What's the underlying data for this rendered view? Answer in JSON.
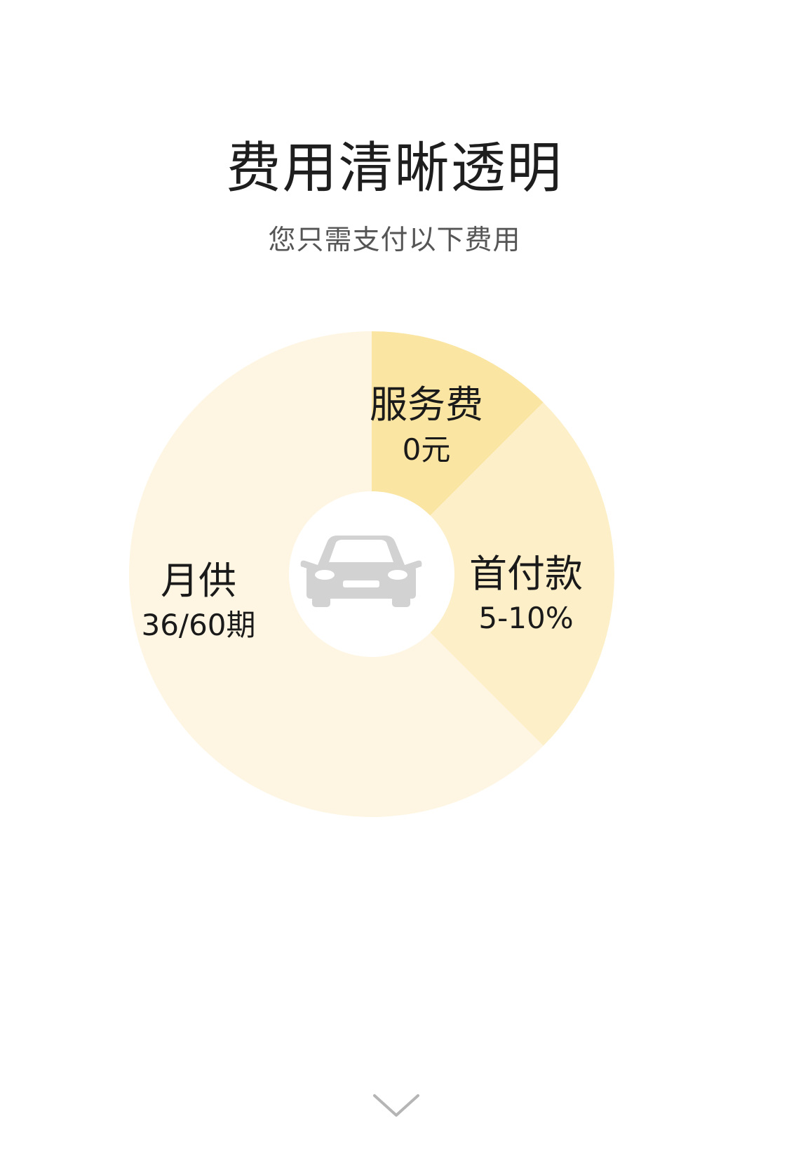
{
  "header": {
    "title": "费用清晰透明",
    "subtitle": "您只需支付以下费用"
  },
  "colors": {
    "service_fee": "#FAE5A2",
    "down_payment": "#FDEFC8",
    "monthly": "#FEF6E3",
    "car_icon": "#D2D2D2",
    "hole": "#FFFFFF"
  },
  "center": {
    "icon": "car-icon"
  },
  "scroll": {
    "icon": "chevron-down-icon"
  },
  "chart_data": {
    "type": "pie",
    "slices": [
      {
        "name": "服务费",
        "value_label": "0元",
        "color": "#FAE5A2",
        "share": 0.125
      },
      {
        "name": "首付款",
        "value_label": "5-10%",
        "color": "#FDEFC8",
        "share": 0.25
      },
      {
        "name": "月供",
        "value_label": "36/60期",
        "color": "#FEF6E3",
        "share": 0.625
      }
    ]
  }
}
